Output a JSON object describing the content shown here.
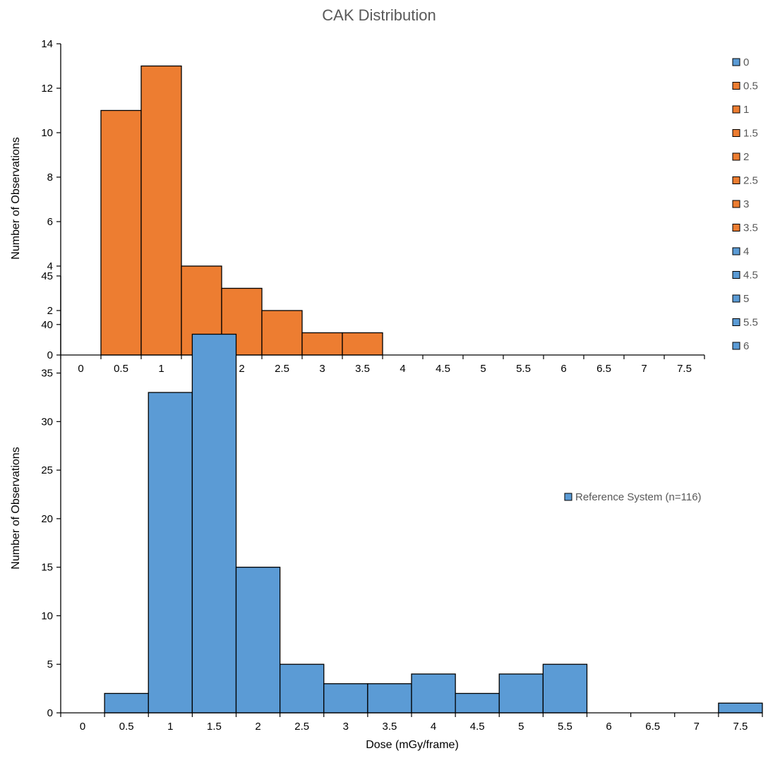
{
  "title": "CAK Distribution",
  "colors": {
    "orange": "#ED7D31",
    "blue": "#5B9BD5",
    "outline": "#000000"
  },
  "chart_data": [
    {
      "type": "bar",
      "title": "",
      "xlabel": "",
      "ylabel": "Number of Observations",
      "ylim": [
        0,
        14
      ],
      "yticks": [
        "0",
        "2",
        "4",
        "6",
        "8",
        "10",
        "12",
        "14"
      ],
      "categories": [
        "0",
        "0.5",
        "1",
        "1.5",
        "2",
        "2.5",
        "3",
        "3.5",
        "4",
        "4.5",
        "5",
        "5.5",
        "6",
        "6.5",
        "7",
        "7.5"
      ],
      "values": [
        0,
        11,
        13,
        4,
        3,
        2,
        1,
        1,
        0,
        0,
        0,
        0,
        0,
        0,
        0,
        0
      ],
      "legend_placement": "right",
      "legend": [
        {
          "label": "0",
          "color": "#5B9BD5"
        },
        {
          "label": "0.5",
          "color": "#ED7D31"
        },
        {
          "label": "1",
          "color": "#ED7D31"
        },
        {
          "label": "1.5",
          "color": "#ED7D31"
        },
        {
          "label": "2",
          "color": "#ED7D31"
        },
        {
          "label": "2.5",
          "color": "#ED7D31"
        },
        {
          "label": "3",
          "color": "#ED7D31"
        },
        {
          "label": "3.5",
          "color": "#ED7D31"
        },
        {
          "label": "4",
          "color": "#5B9BD5"
        },
        {
          "label": "4.5",
          "color": "#5B9BD5"
        },
        {
          "label": "5",
          "color": "#5B9BD5"
        },
        {
          "label": "5.5",
          "color": "#5B9BD5"
        },
        {
          "label": "6",
          "color": "#5B9BD5"
        }
      ],
      "bar_color": "#ED7D31",
      "grid": false
    },
    {
      "type": "bar",
      "title": "",
      "xlabel": "Dose (mGy/frame)",
      "ylabel": "Number of Observations",
      "ylim": [
        0,
        45
      ],
      "yticks": [
        "0",
        "5",
        "10",
        "15",
        "20",
        "25",
        "30",
        "35",
        "40",
        "45"
      ],
      "categories": [
        "0",
        "0.5",
        "1",
        "1.5",
        "2",
        "2.5",
        "3",
        "3.5",
        "4",
        "4.5",
        "5",
        "5.5",
        "6",
        "6.5",
        "7",
        "7.5"
      ],
      "values": [
        0,
        2,
        33,
        39,
        15,
        5,
        3,
        3,
        4,
        2,
        4,
        5,
        0,
        0,
        0,
        1
      ],
      "series": [
        {
          "name": "Reference System (n=116)",
          "values": [
            0,
            2,
            33,
            39,
            15,
            5,
            3,
            3,
            4,
            2,
            4,
            5,
            0,
            0,
            0,
            1
          ]
        }
      ],
      "legend_placement": "right",
      "legend": [
        {
          "label": "Reference System (n=116)",
          "color": "#5B9BD5"
        }
      ],
      "bar_color": "#5B9BD5",
      "grid": false
    }
  ]
}
